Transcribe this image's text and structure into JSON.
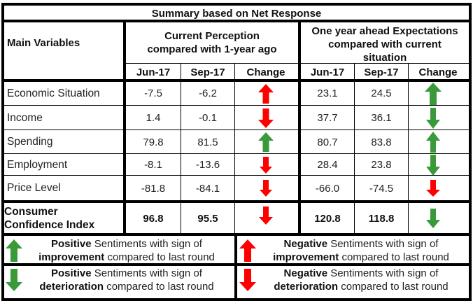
{
  "title": "Summary based on Net Response",
  "header": {
    "main_variables": "Main Variables",
    "current_perception": "Current Perception compared with 1-year ago",
    "current_perception_line1": "Current Perception",
    "current_perception_line2": "compared with 1-year ago",
    "expectations_line1": "One year ahead Expectations",
    "expectations_line2": "compared with current",
    "expectations_line3": "situation",
    "columns": [
      "Jun-17",
      "Sep-17",
      "Change",
      "Jun-17",
      "Sep-17",
      "Change"
    ]
  },
  "rows": [
    {
      "variable": "Economic Situation",
      "cur_jun": "-7.5",
      "cur_sep": "-6.2",
      "cur_change": {
        "direction": "up",
        "color": "red"
      },
      "exp_jun": "23.1",
      "exp_sep": "24.5",
      "exp_change": {
        "direction": "up",
        "color": "green"
      }
    },
    {
      "variable": "Income",
      "cur_jun": "1.4",
      "cur_sep": "-0.1",
      "cur_change": {
        "direction": "down",
        "color": "red"
      },
      "exp_jun": "37.7",
      "exp_sep": "36.1",
      "exp_change": {
        "direction": "down",
        "color": "green"
      }
    },
    {
      "variable": "Spending",
      "cur_jun": "79.8",
      "cur_sep": "81.5",
      "cur_change": {
        "direction": "up",
        "color": "green"
      },
      "exp_jun": "80.7",
      "exp_sep": "83.8",
      "exp_change": {
        "direction": "up",
        "color": "green"
      }
    },
    {
      "variable": "Employment",
      "cur_jun": "-8.1",
      "cur_sep": "-13.6",
      "cur_change": {
        "direction": "down",
        "color": "red"
      },
      "exp_jun": "28.4",
      "exp_sep": "23.8",
      "exp_change": {
        "direction": "down",
        "color": "green"
      }
    },
    {
      "variable": "Price Level",
      "cur_jun": "-81.8",
      "cur_sep": "-84.1",
      "cur_change": {
        "direction": "down",
        "color": "red"
      },
      "exp_jun": "-66.0",
      "exp_sep": "-74.5",
      "exp_change": {
        "direction": "down",
        "color": "red"
      }
    }
  ],
  "cci": {
    "label_line1": "Consumer",
    "label_line2": "Confidence Index",
    "cur_jun": "96.8",
    "cur_sep": "95.5",
    "cur_change": {
      "direction": "down",
      "color": "red"
    },
    "exp_jun": "120.8",
    "exp_sep": "118.8",
    "exp_change": {
      "direction": "down",
      "color": "green"
    }
  },
  "legend": [
    {
      "icon": "arrow-up-green-icon",
      "bold1": "Positive",
      "text1": " Sentiments with sign of",
      "bold2": "improvement",
      "text2": " compared to last round"
    },
    {
      "icon": "arrow-up-red-icon",
      "bold1": "Negative",
      "text1": " Sentiments with sign of",
      "bold2": "improvement",
      "text2": " compared to last round"
    },
    {
      "icon": "arrow-down-green-icon",
      "bold1": "Positive",
      "text1": " Sentiments with sign of",
      "bold2": "deterioration",
      "text2": " compared to last round"
    },
    {
      "icon": "arrow-down-red-icon",
      "bold1": "Negative",
      "text1": " Sentiments with sign of",
      "bold2": "deterioration",
      "text2": " compared to last round"
    }
  ],
  "colors": {
    "green": "#3a9a3a",
    "red": "#ff0000",
    "border": "#000000"
  }
}
